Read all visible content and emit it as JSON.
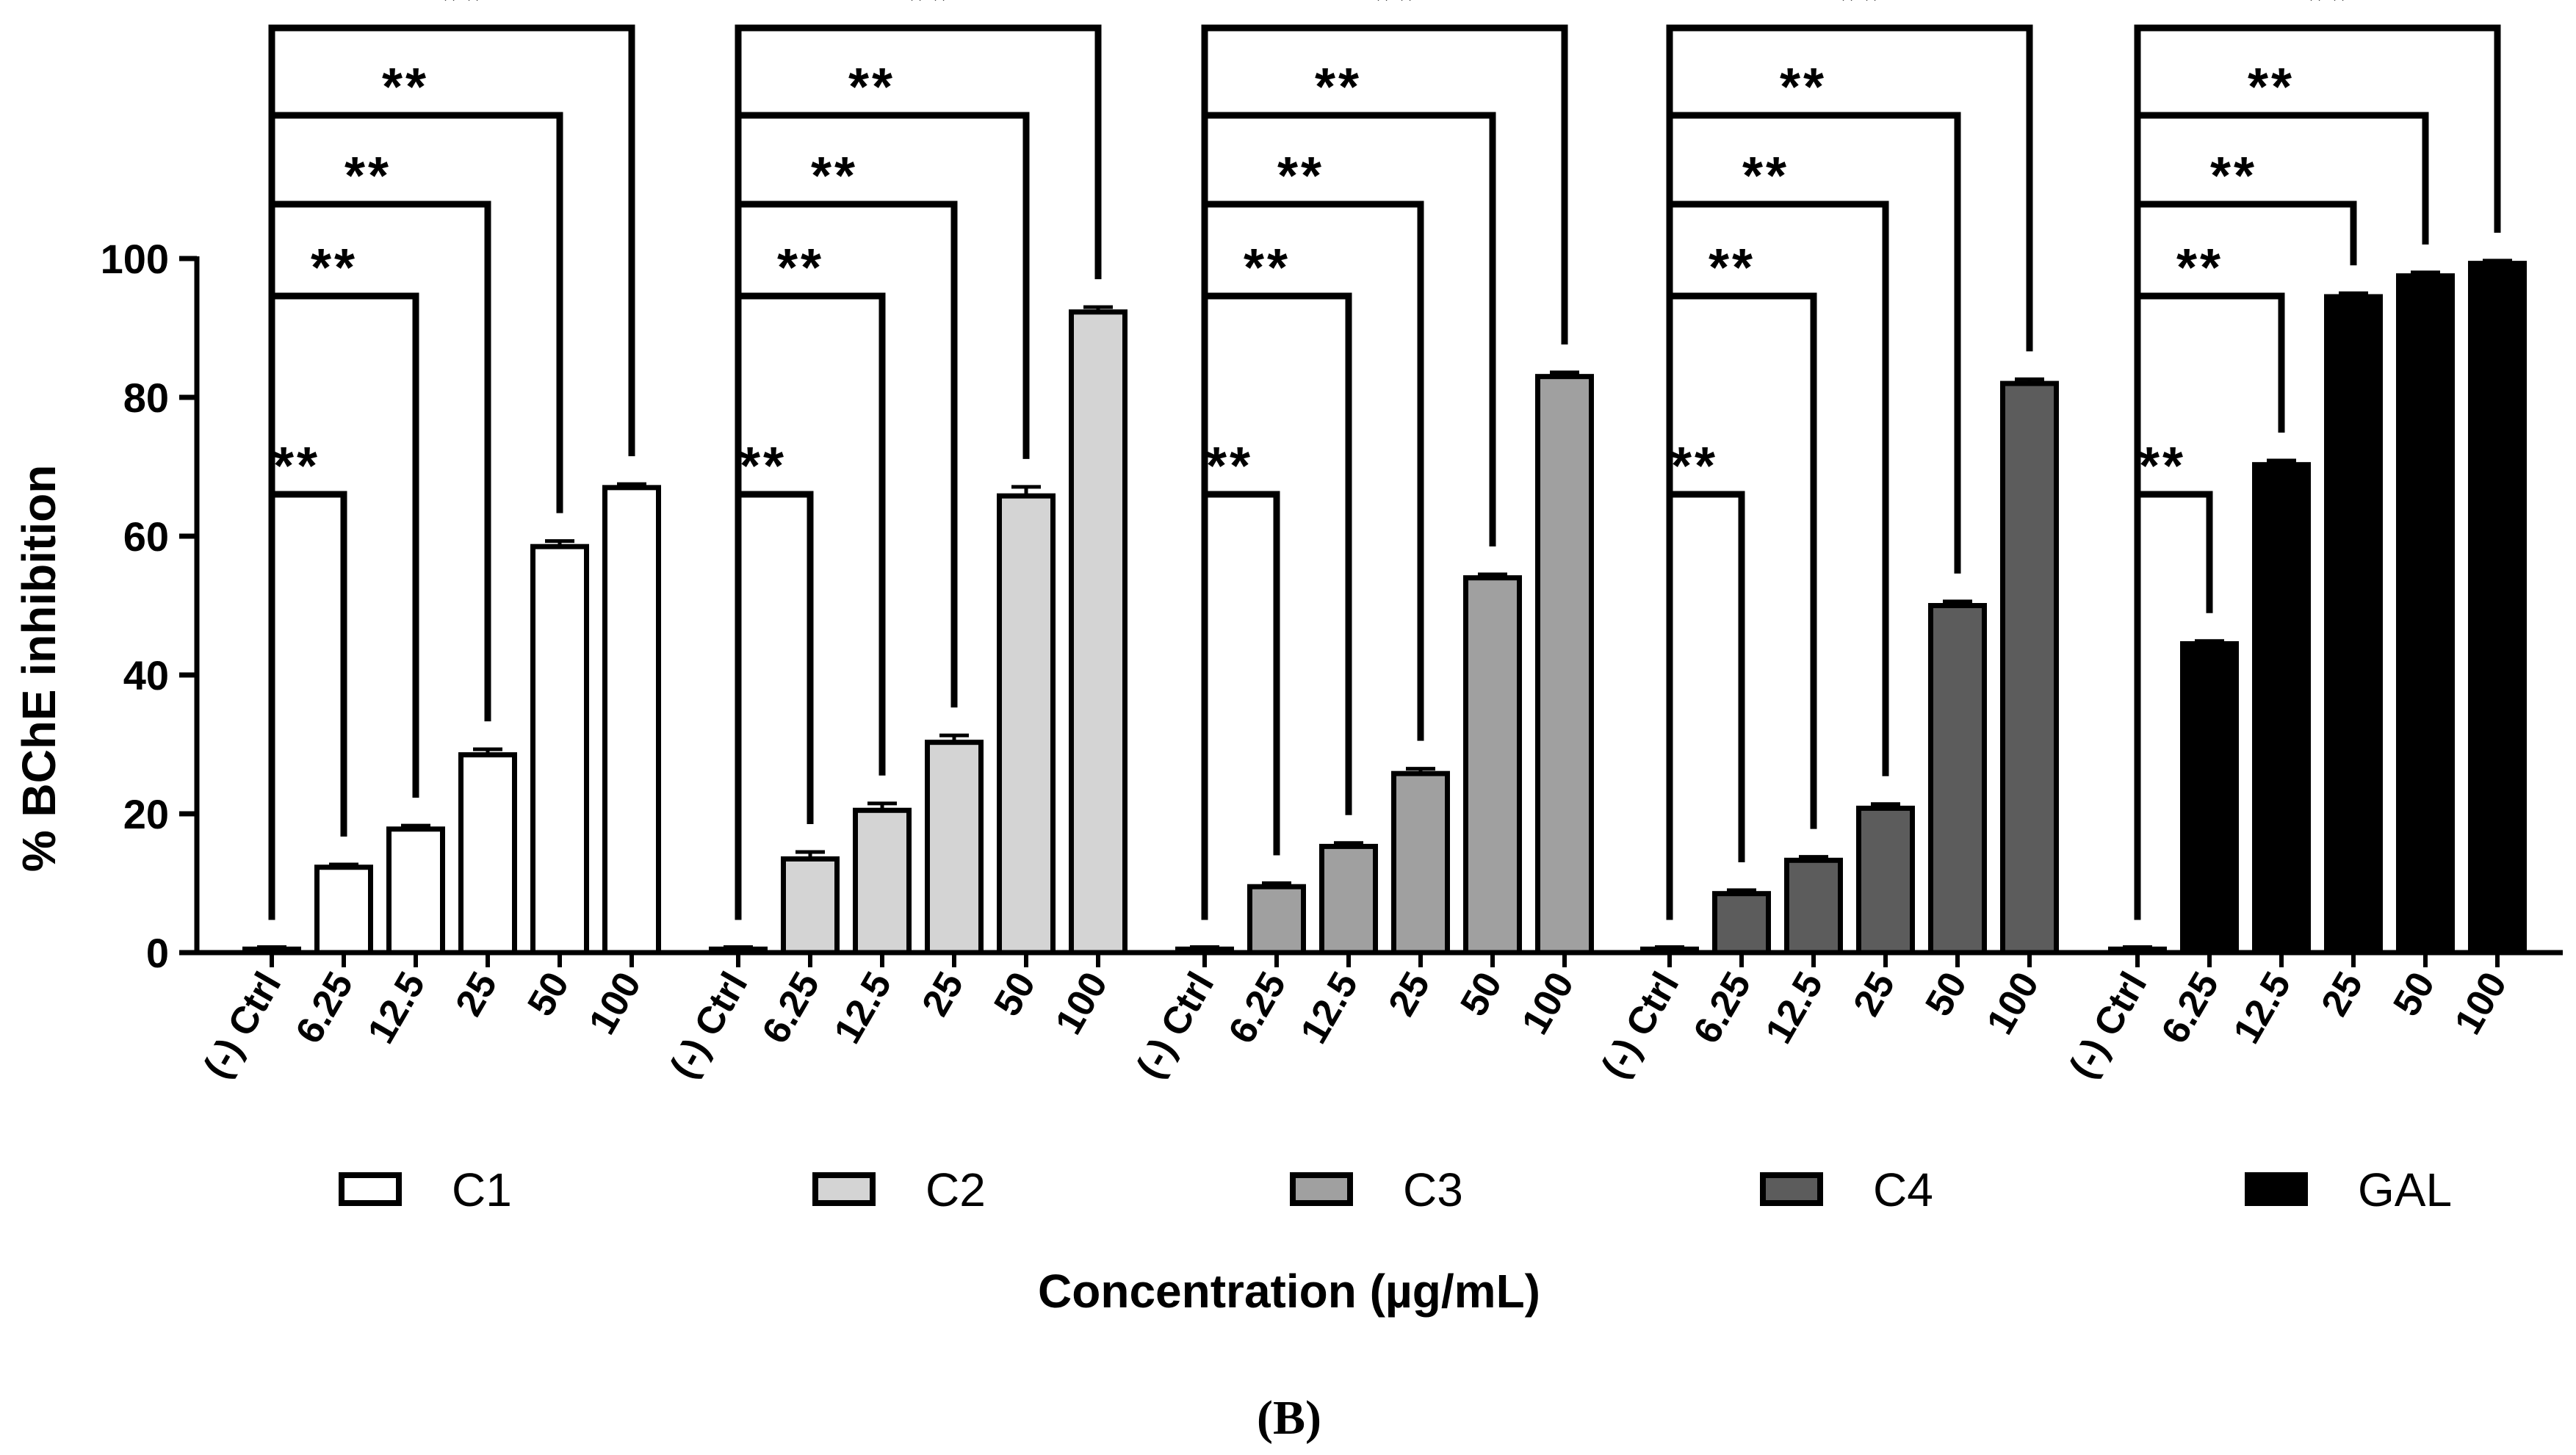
{
  "chart_data": {
    "type": "bar",
    "ylabel": "% BChE inhibition",
    "xlabel": "Concentration (µg/mL)",
    "panel_label": "(B)",
    "ylim": [
      0,
      100
    ],
    "yticks": [
      0,
      20,
      40,
      60,
      80,
      100
    ],
    "categories": [
      "(-) Ctrl",
      "6.25",
      "12.5",
      "25",
      "50",
      "100"
    ],
    "significance_label": "**",
    "series": [
      {
        "name": "C1",
        "color": "#ffffff",
        "values": [
          0.5,
          12.3,
          17.8,
          28.5,
          58.5,
          67.0
        ],
        "errors": [
          0.3,
          0.4,
          0.5,
          0.8,
          0.8,
          0.5
        ]
      },
      {
        "name": "C2",
        "color": "#d4d4d4",
        "values": [
          0.5,
          13.5,
          20.5,
          30.3,
          65.8,
          92.3
        ],
        "errors": [
          0.3,
          1.0,
          1.0,
          1.0,
          1.3,
          0.7
        ]
      },
      {
        "name": "C3",
        "color": "#a0a0a0",
        "values": [
          0.5,
          9.5,
          15.3,
          25.8,
          54.0,
          83.0
        ],
        "errors": [
          0.3,
          0.5,
          0.5,
          0.7,
          0.5,
          0.6
        ]
      },
      {
        "name": "C4",
        "color": "#5c5c5c",
        "values": [
          0.5,
          8.5,
          13.3,
          20.8,
          50.0,
          82.0
        ],
        "errors": [
          0.3,
          0.5,
          0.5,
          0.6,
          0.6,
          0.6
        ]
      },
      {
        "name": "GAL",
        "color": "#000000",
        "values": [
          0.5,
          44.5,
          70.3,
          94.5,
          97.5,
          99.3
        ],
        "errors": [
          0.3,
          0.4,
          0.6,
          0.5,
          0.5,
          0.4
        ]
      }
    ]
  }
}
